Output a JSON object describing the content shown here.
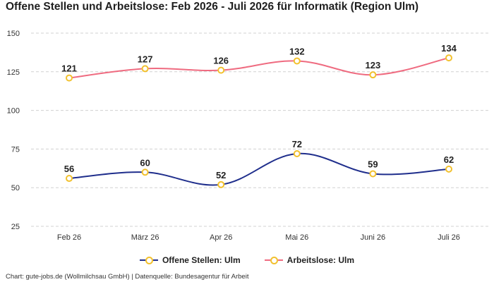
{
  "title": "Offene Stellen und Arbeitslose: Feb 2026 - Juli 2026 für Informatik (Region Ulm)",
  "source": "Chart: gute-jobs.de (Wollmilchsau GmbH) | Datenquelle: Bundesagentur für Arbeit",
  "colors": {
    "offene_stellen": "#1f2e8c",
    "arbeitslose": "#ef6b80",
    "marker_border": "#f2c12e",
    "marker_fill": "#ffffff",
    "grid": "#d0d0d0"
  },
  "chart_data": {
    "type": "line",
    "categories": [
      "Feb 26",
      "März 26",
      "Apr 26",
      "Mai 26",
      "Juni 26",
      "Juli 26"
    ],
    "ylim": [
      25,
      150
    ],
    "yticks": [
      25,
      50,
      75,
      100,
      125,
      150
    ],
    "grid": true,
    "legend_position": "bottom",
    "series": [
      {
        "name": "Offene Stellen: Ulm",
        "values": [
          56,
          60,
          52,
          72,
          59,
          62
        ],
        "color": "#1f2e8c"
      },
      {
        "name": "Arbeitslose: Ulm",
        "values": [
          121,
          127,
          126,
          132,
          123,
          134
        ],
        "color": "#ef6b80"
      }
    ]
  }
}
